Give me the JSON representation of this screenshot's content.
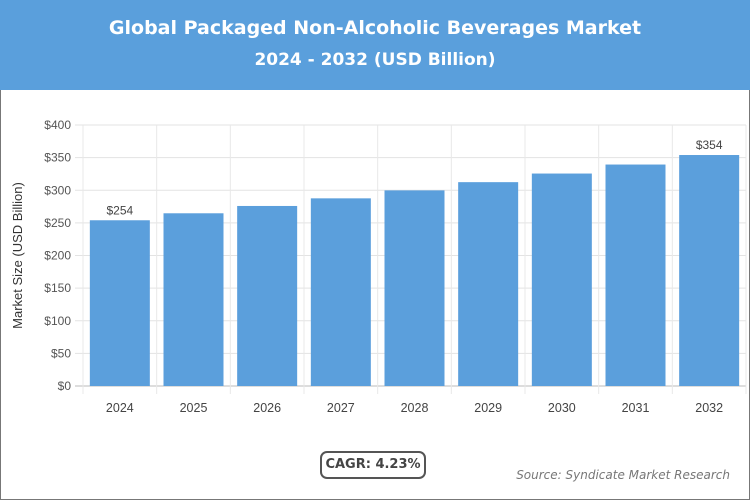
{
  "header": {
    "title": "Global Packaged Non-Alcoholic Beverages Market",
    "subtitle": "2024 - 2032 (USD Billion)"
  },
  "footer": {
    "cagr": "CAGR: 4.23%",
    "source": "Source: Syndicate Market Research"
  },
  "colors": {
    "header": "#5a9fdc",
    "bar": "#5b9fdc"
  },
  "chart_data": {
    "type": "bar",
    "title": "Global Packaged Non-Alcoholic Beverages Market",
    "subtitle": "2024 - 2032 (USD Billion)",
    "ylabel": "Market Size (USD Billion)",
    "xlabel": "",
    "ylim": [
      0,
      400
    ],
    "yticks": [
      0,
      50,
      100,
      150,
      200,
      250,
      300,
      350,
      400
    ],
    "ytick_labels": [
      "$0",
      "$50",
      "$100",
      "$150",
      "$200",
      "$250",
      "$300",
      "$350",
      "$400"
    ],
    "grid": true,
    "categories": [
      "2024",
      "2025",
      "2026",
      "2027",
      "2028",
      "2029",
      "2030",
      "2031",
      "2032"
    ],
    "values": [
      254,
      264.7,
      275.9,
      287.6,
      299.8,
      312.4,
      325.6,
      339.4,
      354
    ],
    "data_labels": [
      {
        "index": 0,
        "text": "$254"
      },
      {
        "index": 8,
        "text": "$354"
      }
    ]
  }
}
